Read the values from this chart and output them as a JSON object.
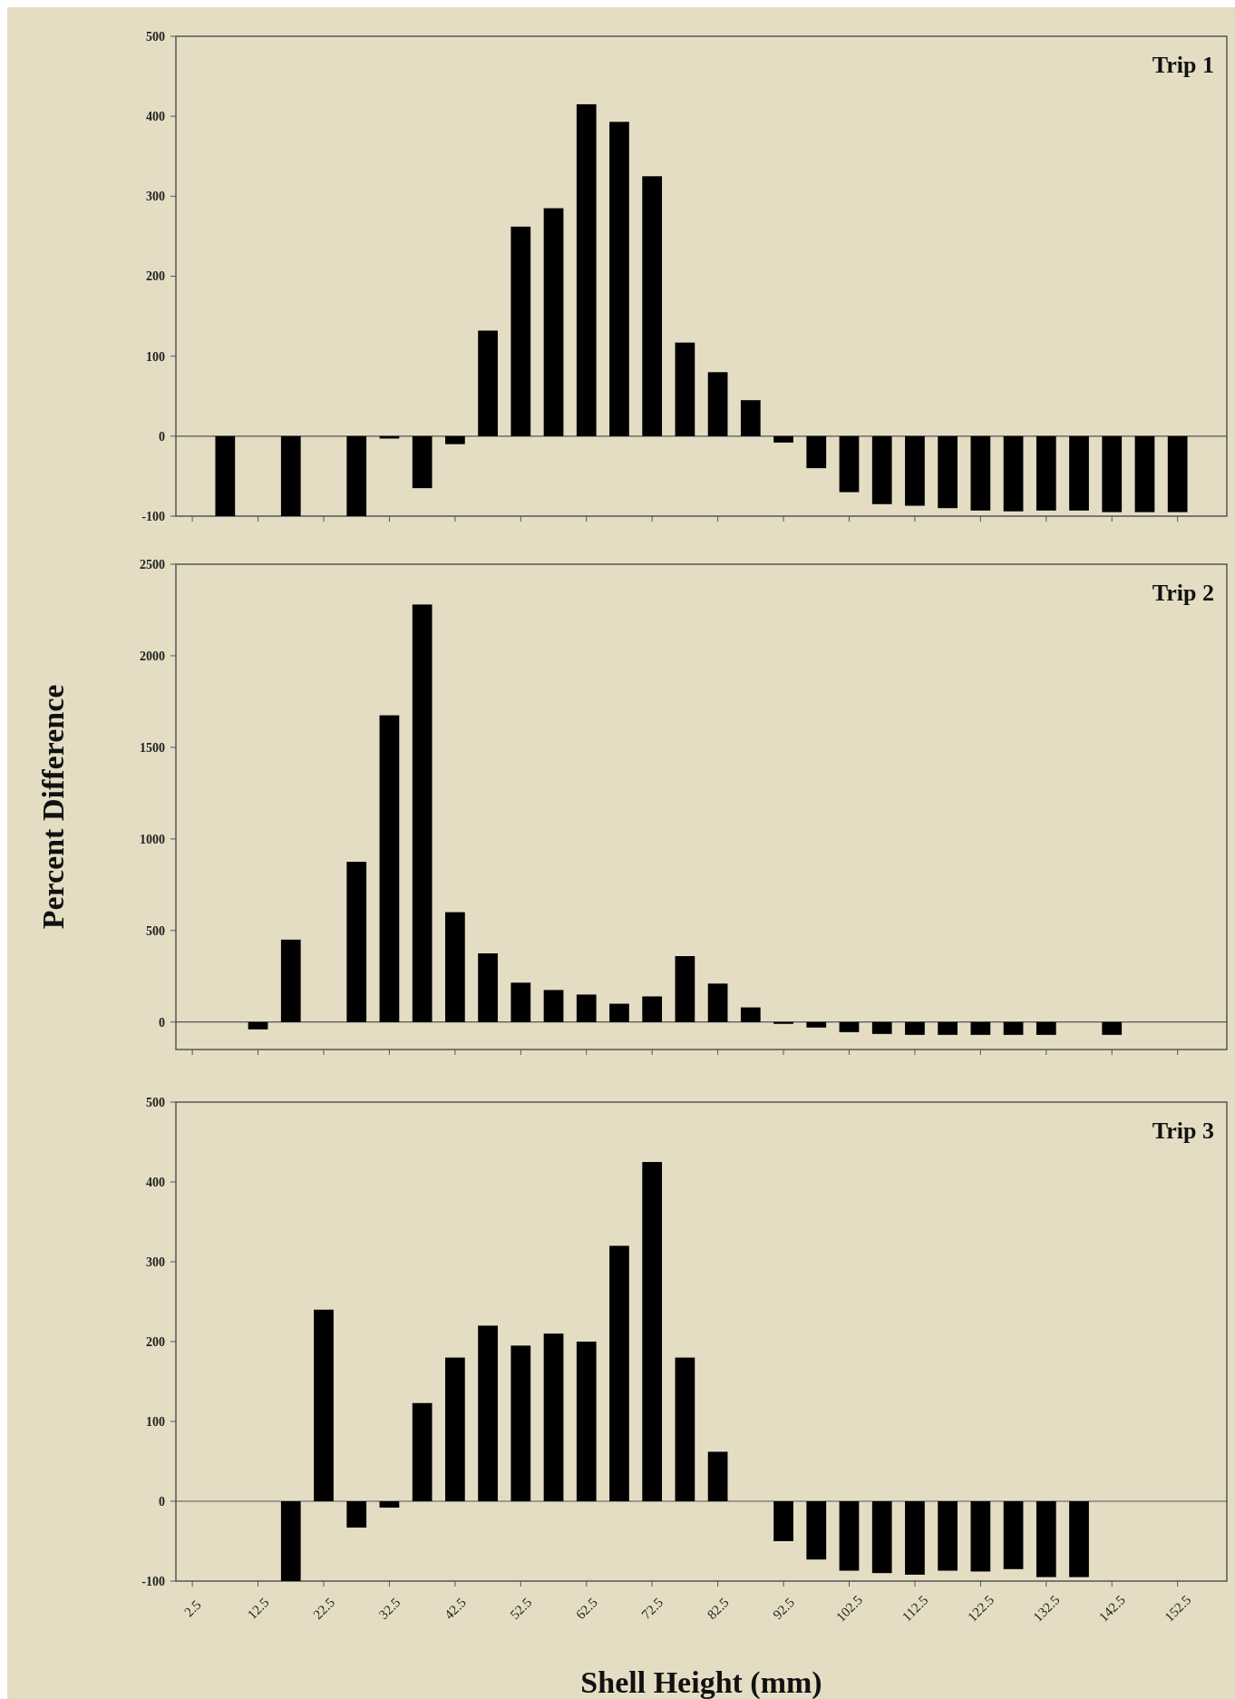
{
  "chart_data": [
    {
      "type": "bar",
      "title": "Trip 1",
      "color": "#000000",
      "xlim": [
        0,
        160
      ],
      "xticks": [
        2.5,
        12.5,
        22.5,
        32.5,
        42.5,
        52.5,
        62.5,
        72.5,
        82.5,
        92.5,
        102.5,
        112.5,
        122.5,
        132.5,
        142.5,
        152.5
      ],
      "ylim": [
        -100,
        500
      ],
      "yticks": [
        -100,
        0,
        100,
        200,
        300,
        400,
        500
      ],
      "tick_labels": "y",
      "x": [
        7.5,
        17.5,
        27.5,
        32.5,
        37.5,
        42.5,
        47.5,
        52.5,
        57.5,
        62.5,
        67.5,
        72.5,
        77.5,
        82.5,
        87.5,
        92.5,
        97.5,
        102.5,
        107.5,
        112.5,
        117.5,
        122.5,
        127.5,
        132.5,
        137.5,
        142.5,
        147.5,
        152.5
      ],
      "values": [
        -100,
        -100,
        -100,
        -3,
        -65,
        -10,
        132,
        262,
        285,
        415,
        393,
        325,
        117,
        80,
        45,
        -8,
        -40,
        -70,
        -85,
        -87,
        -90,
        -93,
        -94,
        -93,
        -93,
        -95,
        -95,
        -95
      ]
    },
    {
      "type": "bar",
      "title": "Trip 2",
      "ylabel": "Percent  Difference",
      "color": "#000000",
      "xlim": [
        0,
        160
      ],
      "xticks": [
        2.5,
        12.5,
        22.5,
        32.5,
        42.5,
        52.5,
        62.5,
        72.5,
        82.5,
        92.5,
        102.5,
        112.5,
        122.5,
        132.5,
        142.5,
        152.5
      ],
      "ylim": [
        -150,
        2500
      ],
      "yticks": [
        0,
        500,
        1000,
        1500,
        2000,
        2500
      ],
      "tick_labels": "y",
      "x": [
        12.5,
        17.5,
        27.5,
        32.5,
        37.5,
        42.5,
        47.5,
        52.5,
        57.5,
        62.5,
        67.5,
        72.5,
        77.5,
        82.5,
        87.5,
        92.5,
        97.5,
        102.5,
        107.5,
        112.5,
        117.5,
        122.5,
        127.5,
        132.5,
        142.5
      ],
      "values": [
        -40,
        450,
        875,
        1675,
        2280,
        600,
        375,
        215,
        175,
        150,
        100,
        140,
        360,
        210,
        80,
        -10,
        -30,
        -55,
        -65,
        -70,
        -70,
        -70,
        -70,
        -70,
        -70
      ]
    },
    {
      "type": "bar",
      "title": "Trip 3",
      "xlabel": "Shell Height (mm)",
      "color": "#000000",
      "xlim": [
        0,
        160
      ],
      "xticks": [
        2.5,
        12.5,
        22.5,
        32.5,
        42.5,
        52.5,
        62.5,
        72.5,
        82.5,
        92.5,
        102.5,
        112.5,
        122.5,
        132.5,
        142.5,
        152.5
      ],
      "ylim": [
        -100,
        500
      ],
      "yticks": [
        -100,
        0,
        100,
        200,
        300,
        400,
        500
      ],
      "x": [
        17.5,
        22.5,
        27.5,
        32.5,
        37.5,
        42.5,
        47.5,
        52.5,
        57.5,
        62.5,
        67.5,
        72.5,
        77.5,
        82.5,
        92.5,
        97.5,
        102.5,
        107.5,
        112.5,
        117.5,
        122.5,
        127.5,
        132.5,
        137.5
      ],
      "values": [
        -100,
        240,
        -33,
        -8,
        123,
        180,
        220,
        195,
        210,
        200,
        320,
        425,
        180,
        62,
        -50,
        -73,
        -87,
        -90,
        -92,
        -87,
        -88,
        -85,
        -95,
        -95
      ]
    }
  ]
}
